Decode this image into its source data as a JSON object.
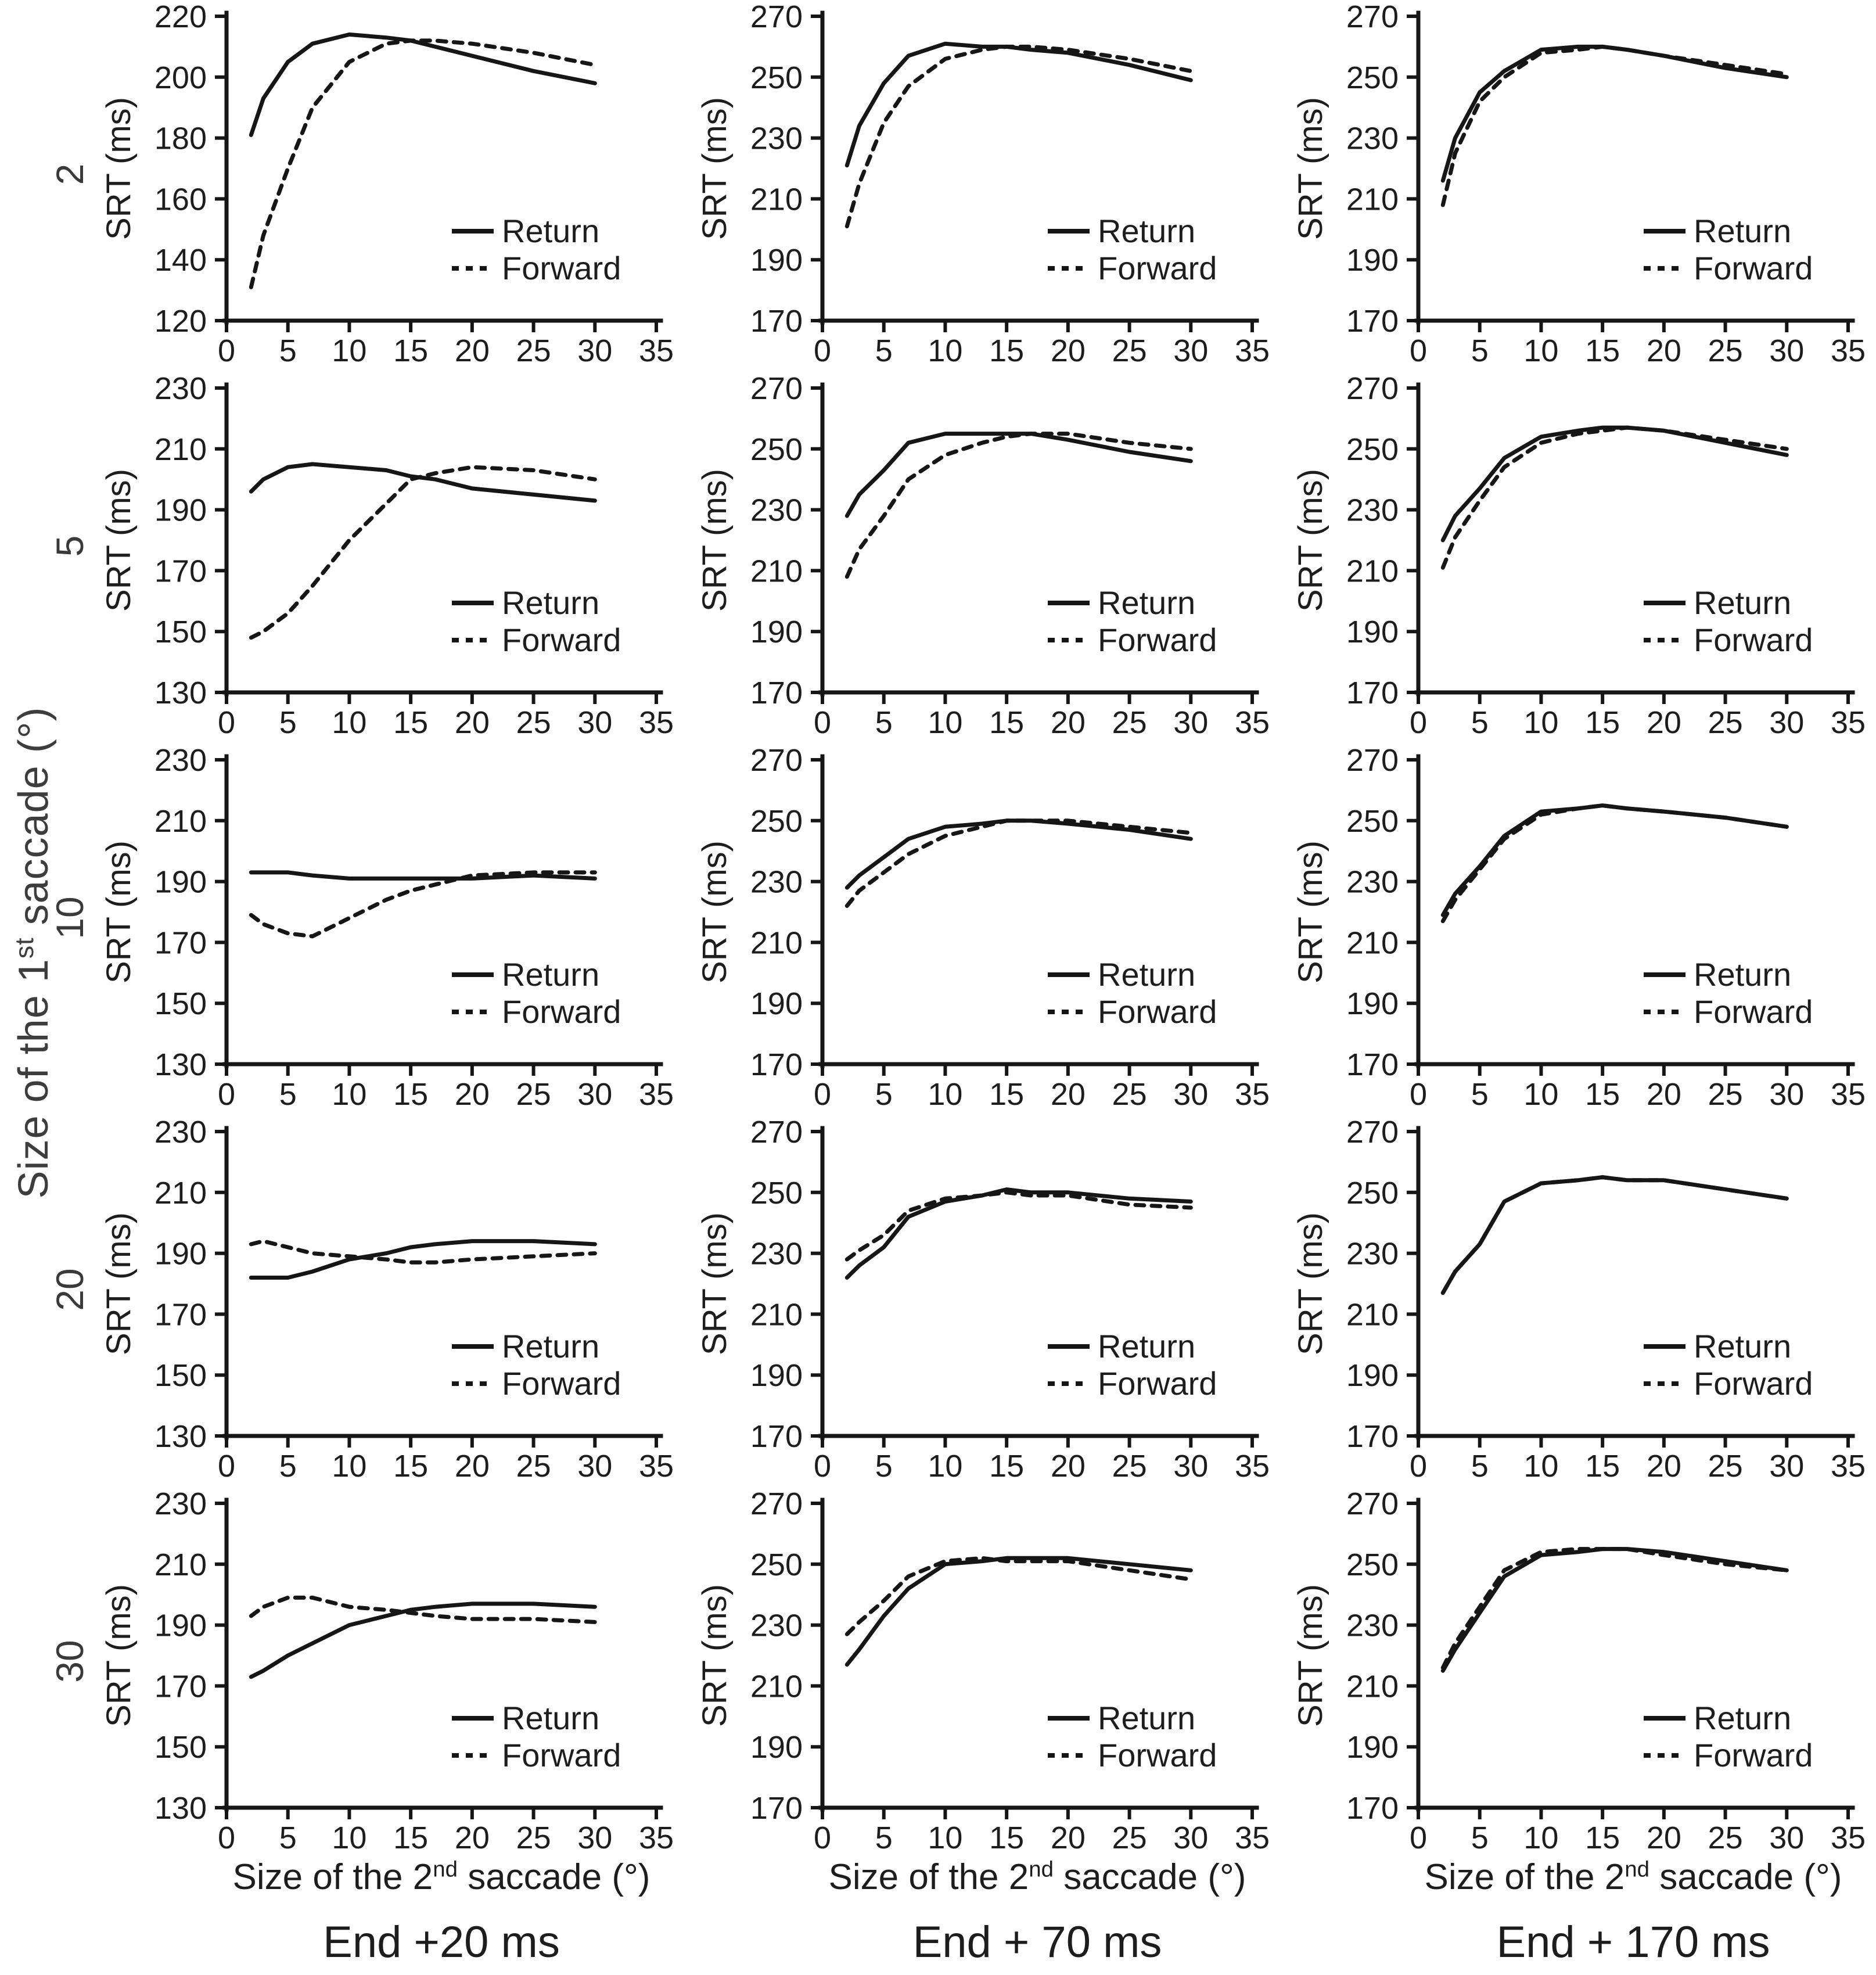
{
  "figure": {
    "left_label": {
      "pre": "Size of the 1",
      "sup": "st",
      "post": " saccade (°)",
      "full": "Size of the 1st saccade (°)"
    },
    "x_label": {
      "pre": "Size of the 2",
      "sup": "nd",
      "post": " saccade (°)",
      "full": "Size of the 2nd saccade (°)"
    },
    "y_axis_label": "SRT (ms)",
    "row_labels": [
      "2",
      "5",
      "10",
      "20",
      "30"
    ],
    "col_captions": [
      "End +20 ms",
      "End + 70 ms",
      "End + 170 ms"
    ],
    "legend": {
      "return_label": "Return",
      "forward_label": "Forward"
    },
    "xticks": [
      0,
      5,
      10,
      15,
      20,
      25,
      30,
      35
    ],
    "line_color": "#161616",
    "text_color": "#1d1d1d"
  },
  "chart_data": [
    {
      "type": "line",
      "row_label": "2",
      "col_label": "End +20 ms",
      "ylabel": "SRT (ms)",
      "xlim": [
        0,
        35
      ],
      "ylim": [
        120,
        220
      ],
      "yticks": [
        120,
        140,
        160,
        180,
        200,
        220
      ],
      "x": [
        2,
        3,
        5,
        7,
        10,
        13,
        15,
        17,
        20,
        25,
        30
      ],
      "series": [
        {
          "name": "Return",
          "style": "solid",
          "values": [
            181,
            193,
            205,
            211,
            214,
            213,
            212,
            210,
            207,
            202,
            198
          ]
        },
        {
          "name": "Forward",
          "style": "dashed",
          "values": [
            131,
            148,
            170,
            190,
            205,
            211,
            212,
            212,
            211,
            208,
            204
          ]
        }
      ]
    },
    {
      "type": "line",
      "row_label": "2",
      "col_label": "End + 70 ms",
      "ylabel": "SRT (ms)",
      "xlim": [
        0,
        35
      ],
      "ylim": [
        170,
        270
      ],
      "yticks": [
        170,
        190,
        210,
        230,
        250,
        270
      ],
      "x": [
        2,
        3,
        5,
        7,
        10,
        13,
        15,
        17,
        20,
        25,
        30
      ],
      "series": [
        {
          "name": "Return",
          "style": "solid",
          "values": [
            221,
            234,
            248,
            257,
            261,
            260,
            260,
            259,
            258,
            254,
            249
          ]
        },
        {
          "name": "Forward",
          "style": "dashed",
          "values": [
            201,
            215,
            235,
            247,
            256,
            259,
            260,
            260,
            259,
            256,
            252
          ]
        }
      ]
    },
    {
      "type": "line",
      "row_label": "2",
      "col_label": "End + 170 ms",
      "ylabel": "SRT (ms)",
      "xlim": [
        0,
        35
      ],
      "ylim": [
        170,
        270
      ],
      "yticks": [
        170,
        190,
        210,
        230,
        250,
        270
      ],
      "x": [
        2,
        3,
        5,
        7,
        10,
        13,
        15,
        17,
        20,
        25,
        30
      ],
      "series": [
        {
          "name": "Return",
          "style": "solid",
          "values": [
            216,
            230,
            245,
            252,
            259,
            260,
            260,
            259,
            257,
            253,
            250
          ]
        },
        {
          "name": "Forward",
          "style": "dashed",
          "values": [
            208,
            225,
            242,
            250,
            258,
            259,
            260,
            259,
            257,
            254,
            251
          ]
        }
      ]
    },
    {
      "type": "line",
      "row_label": "5",
      "col_label": "End +20 ms",
      "ylabel": "SRT (ms)",
      "xlim": [
        0,
        35
      ],
      "ylim": [
        130,
        230
      ],
      "yticks": [
        130,
        150,
        170,
        190,
        210,
        230
      ],
      "x": [
        2,
        3,
        5,
        7,
        10,
        13,
        15,
        17,
        20,
        25,
        30
      ],
      "series": [
        {
          "name": "Return",
          "style": "solid",
          "values": [
            196,
            200,
            204,
            205,
            204,
            203,
            201,
            200,
            197,
            195,
            193
          ]
        },
        {
          "name": "Forward",
          "style": "dashed",
          "values": [
            148,
            150,
            156,
            165,
            180,
            192,
            200,
            202,
            204,
            203,
            200
          ]
        }
      ]
    },
    {
      "type": "line",
      "row_label": "5",
      "col_label": "End + 70 ms",
      "ylabel": "SRT (ms)",
      "xlim": [
        0,
        35
      ],
      "ylim": [
        170,
        270
      ],
      "yticks": [
        170,
        190,
        210,
        230,
        250,
        270
      ],
      "x": [
        2,
        3,
        5,
        7,
        10,
        13,
        15,
        17,
        20,
        25,
        30
      ],
      "series": [
        {
          "name": "Return",
          "style": "solid",
          "values": [
            228,
            235,
            243,
            252,
            255,
            255,
            255,
            255,
            253,
            249,
            246
          ]
        },
        {
          "name": "Forward",
          "style": "dashed",
          "values": [
            208,
            217,
            228,
            240,
            248,
            252,
            254,
            255,
            255,
            252,
            250
          ]
        }
      ]
    },
    {
      "type": "line",
      "row_label": "5",
      "col_label": "End + 170 ms",
      "ylabel": "SRT (ms)",
      "xlim": [
        0,
        35
      ],
      "ylim": [
        170,
        270
      ],
      "yticks": [
        170,
        190,
        210,
        230,
        250,
        270
      ],
      "x": [
        2,
        3,
        5,
        7,
        10,
        13,
        15,
        17,
        20,
        25,
        30
      ],
      "series": [
        {
          "name": "Return",
          "style": "solid",
          "values": [
            220,
            228,
            237,
            247,
            254,
            256,
            257,
            257,
            256,
            252,
            248
          ]
        },
        {
          "name": "Forward",
          "style": "dashed",
          "values": [
            211,
            221,
            233,
            244,
            252,
            255,
            256,
            257,
            256,
            253,
            250
          ]
        }
      ]
    },
    {
      "type": "line",
      "row_label": "10",
      "col_label": "End +20 ms",
      "ylabel": "SRT (ms)",
      "xlim": [
        0,
        35
      ],
      "ylim": [
        130,
        230
      ],
      "yticks": [
        130,
        150,
        170,
        190,
        210,
        230
      ],
      "x": [
        2,
        3,
        5,
        7,
        10,
        13,
        15,
        17,
        20,
        25,
        30
      ],
      "series": [
        {
          "name": "Return",
          "style": "solid",
          "values": [
            193,
            193,
            193,
            192,
            191,
            191,
            191,
            191,
            191,
            192,
            191
          ]
        },
        {
          "name": "Forward",
          "style": "dashed",
          "values": [
            179,
            176,
            173,
            172,
            178,
            184,
            187,
            189,
            192,
            193,
            193
          ]
        }
      ]
    },
    {
      "type": "line",
      "row_label": "10",
      "col_label": "End + 70 ms",
      "ylabel": "SRT (ms)",
      "xlim": [
        0,
        35
      ],
      "ylim": [
        170,
        270
      ],
      "yticks": [
        170,
        190,
        210,
        230,
        250,
        270
      ],
      "x": [
        2,
        3,
        5,
        7,
        10,
        13,
        15,
        17,
        20,
        25,
        30
      ],
      "series": [
        {
          "name": "Return",
          "style": "solid",
          "values": [
            228,
            232,
            238,
            244,
            248,
            249,
            250,
            250,
            249,
            247,
            244
          ]
        },
        {
          "name": "Forward",
          "style": "dashed",
          "values": [
            222,
            227,
            233,
            239,
            245,
            248,
            250,
            250,
            250,
            248,
            246
          ]
        }
      ]
    },
    {
      "type": "line",
      "row_label": "10",
      "col_label": "End + 170 ms",
      "ylabel": "SRT (ms)",
      "xlim": [
        0,
        35
      ],
      "ylim": [
        170,
        270
      ],
      "yticks": [
        170,
        190,
        210,
        230,
        250,
        270
      ],
      "x": [
        2,
        3,
        5,
        7,
        10,
        13,
        15,
        17,
        20,
        25,
        30
      ],
      "series": [
        {
          "name": "Return",
          "style": "solid",
          "values": [
            219,
            226,
            235,
            245,
            253,
            254,
            255,
            254,
            253,
            251,
            248
          ]
        },
        {
          "name": "Forward",
          "style": "dashed",
          "values": [
            217,
            224,
            234,
            244,
            252,
            254,
            255,
            254,
            253,
            251,
            248
          ]
        }
      ]
    },
    {
      "type": "line",
      "row_label": "20",
      "col_label": "End +20 ms",
      "ylabel": "SRT (ms)",
      "xlim": [
        0,
        35
      ],
      "ylim": [
        130,
        230
      ],
      "yticks": [
        130,
        150,
        170,
        190,
        210,
        230
      ],
      "x": [
        2,
        3,
        5,
        7,
        10,
        13,
        15,
        17,
        20,
        25,
        30
      ],
      "series": [
        {
          "name": "Return",
          "style": "solid",
          "values": [
            182,
            182,
            182,
            184,
            188,
            190,
            192,
            193,
            194,
            194,
            193
          ]
        },
        {
          "name": "Forward",
          "style": "dashed",
          "values": [
            193,
            194,
            192,
            190,
            189,
            188,
            187,
            187,
            188,
            189,
            190
          ]
        }
      ]
    },
    {
      "type": "line",
      "row_label": "20",
      "col_label": "End + 70 ms",
      "ylabel": "SRT (ms)",
      "xlim": [
        0,
        35
      ],
      "ylim": [
        170,
        270
      ],
      "yticks": [
        170,
        190,
        210,
        230,
        250,
        270
      ],
      "x": [
        2,
        3,
        5,
        7,
        10,
        13,
        15,
        17,
        20,
        25,
        30
      ],
      "series": [
        {
          "name": "Return",
          "style": "solid",
          "values": [
            222,
            226,
            232,
            242,
            247,
            249,
            251,
            250,
            250,
            248,
            247
          ]
        },
        {
          "name": "Forward",
          "style": "dashed",
          "values": [
            228,
            231,
            236,
            244,
            248,
            249,
            250,
            249,
            249,
            246,
            245
          ]
        }
      ]
    },
    {
      "type": "line",
      "row_label": "20",
      "col_label": "End + 170 ms",
      "ylabel": "SRT (ms)",
      "xlim": [
        0,
        35
      ],
      "ylim": [
        170,
        270
      ],
      "yticks": [
        170,
        190,
        210,
        230,
        250,
        270
      ],
      "x": [
        2,
        3,
        5,
        7,
        10,
        13,
        15,
        17,
        20,
        25,
        30
      ],
      "series": [
        {
          "name": "Return",
          "style": "solid",
          "values": [
            217,
            224,
            233,
            247,
            253,
            254,
            255,
            254,
            254,
            251,
            248
          ]
        },
        {
          "name": "Forward",
          "style": "dashed",
          "values": [
            217,
            224,
            233,
            247,
            253,
            254,
            255,
            254,
            254,
            251,
            248
          ]
        }
      ]
    },
    {
      "type": "line",
      "row_label": "30",
      "col_label": "End +20 ms",
      "ylabel": "SRT (ms)",
      "xlim": [
        0,
        35
      ],
      "ylim": [
        130,
        230
      ],
      "yticks": [
        130,
        150,
        170,
        190,
        210,
        230
      ],
      "x": [
        2,
        3,
        5,
        7,
        10,
        13,
        15,
        17,
        20,
        25,
        30
      ],
      "series": [
        {
          "name": "Return",
          "style": "solid",
          "values": [
            173,
            175,
            180,
            184,
            190,
            193,
            195,
            196,
            197,
            197,
            196
          ]
        },
        {
          "name": "Forward",
          "style": "dashed",
          "values": [
            193,
            196,
            199,
            199,
            196,
            195,
            194,
            193,
            192,
            192,
            191
          ]
        }
      ]
    },
    {
      "type": "line",
      "row_label": "30",
      "col_label": "End + 70 ms",
      "ylabel": "SRT (ms)",
      "xlim": [
        0,
        35
      ],
      "ylim": [
        170,
        270
      ],
      "yticks": [
        170,
        190,
        210,
        230,
        250,
        270
      ],
      "x": [
        2,
        3,
        5,
        7,
        10,
        13,
        15,
        17,
        20,
        25,
        30
      ],
      "series": [
        {
          "name": "Return",
          "style": "solid",
          "values": [
            217,
            222,
            233,
            242,
            250,
            251,
            252,
            252,
            252,
            250,
            248
          ]
        },
        {
          "name": "Forward",
          "style": "dashed",
          "values": [
            227,
            231,
            238,
            246,
            251,
            252,
            251,
            251,
            251,
            248,
            245
          ]
        }
      ]
    },
    {
      "type": "line",
      "row_label": "30",
      "col_label": "End + 170 ms",
      "ylabel": "SRT (ms)",
      "xlim": [
        0,
        35
      ],
      "ylim": [
        170,
        270
      ],
      "yticks": [
        170,
        190,
        210,
        230,
        250,
        270
      ],
      "x": [
        2,
        3,
        5,
        7,
        10,
        13,
        15,
        17,
        20,
        25,
        30
      ],
      "series": [
        {
          "name": "Return",
          "style": "solid",
          "values": [
            215,
            222,
            234,
            246,
            253,
            254,
            255,
            255,
            254,
            251,
            248
          ]
        },
        {
          "name": "Forward",
          "style": "dashed",
          "values": [
            216,
            224,
            236,
            248,
            254,
            255,
            255,
            255,
            253,
            250,
            248
          ]
        }
      ]
    }
  ]
}
